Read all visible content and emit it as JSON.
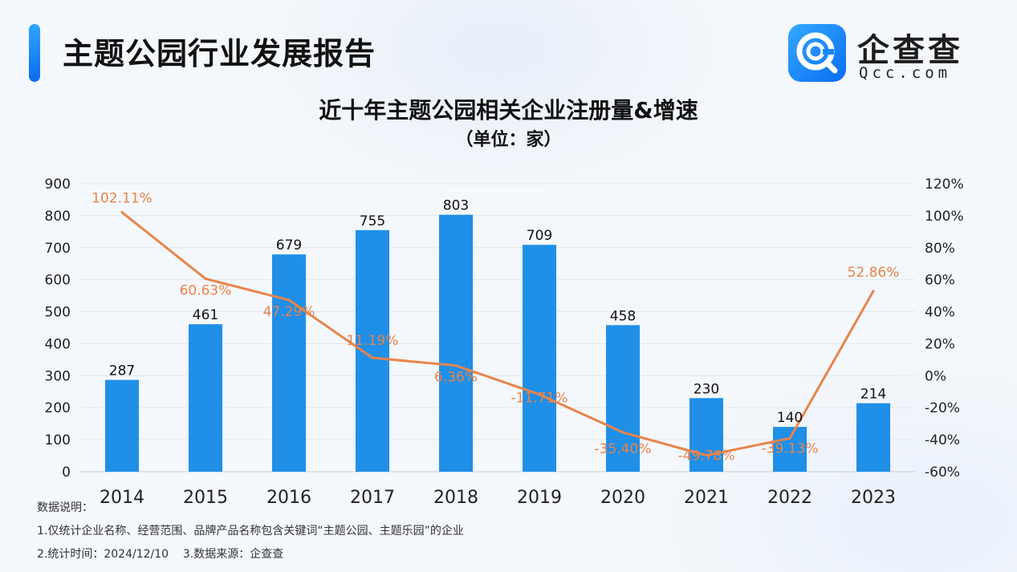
{
  "header": {
    "title": "主题公园行业发展报告",
    "logo_name": "企查查",
    "logo_domain": "Qcc.com"
  },
  "colors": {
    "bar": "#1f8fe8",
    "line": "#e8844a",
    "accent": "#1a7ff0",
    "grid": "#e3e6ea"
  },
  "chart_data": {
    "type": "bar",
    "title": "近十年主题公园相关企业注册量&增速",
    "subtitle": "（单位：家）",
    "categories": [
      "2014",
      "2015",
      "2016",
      "2017",
      "2018",
      "2019",
      "2020",
      "2021",
      "2022",
      "2023"
    ],
    "series": [
      {
        "name": "注册量",
        "type": "bar",
        "axis": "left",
        "values": [
          287,
          461,
          679,
          755,
          803,
          709,
          458,
          230,
          140,
          214
        ],
        "labels": [
          "287",
          "461",
          "679",
          "755",
          "803",
          "709",
          "458",
          "230",
          "140",
          "214"
        ]
      },
      {
        "name": "增速",
        "type": "line",
        "axis": "right",
        "values": [
          102.11,
          60.63,
          47.29,
          11.19,
          6.36,
          -11.71,
          -35.4,
          -49.78,
          -39.13,
          52.86
        ],
        "labels": [
          "102.11%",
          "60.63%",
          "47.29%",
          "11.19%",
          "6.36%",
          "-11.71%",
          "-35.40%",
          "-49.78%",
          "-39.13%",
          "52.86%"
        ]
      }
    ],
    "left_axis": {
      "min": 0,
      "max": 900,
      "step": 100,
      "ticks": [
        "0",
        "100",
        "200",
        "300",
        "400",
        "500",
        "600",
        "700",
        "800",
        "900"
      ]
    },
    "right_axis": {
      "min": -60,
      "max": 120,
      "step": 20,
      "ticks": [
        "-60%",
        "-40%",
        "-20%",
        "0%",
        "20%",
        "40%",
        "60%",
        "80%",
        "100%",
        "120%"
      ]
    },
    "grid": true
  },
  "notes": {
    "heading": "数据说明：",
    "line1": "1.仅统计企业名称、经营范围、品牌产品名称包含关键词“主题公园、主题乐园”的企业",
    "line2": "2.统计时间：2024/12/10    3.数据来源：企查查"
  }
}
